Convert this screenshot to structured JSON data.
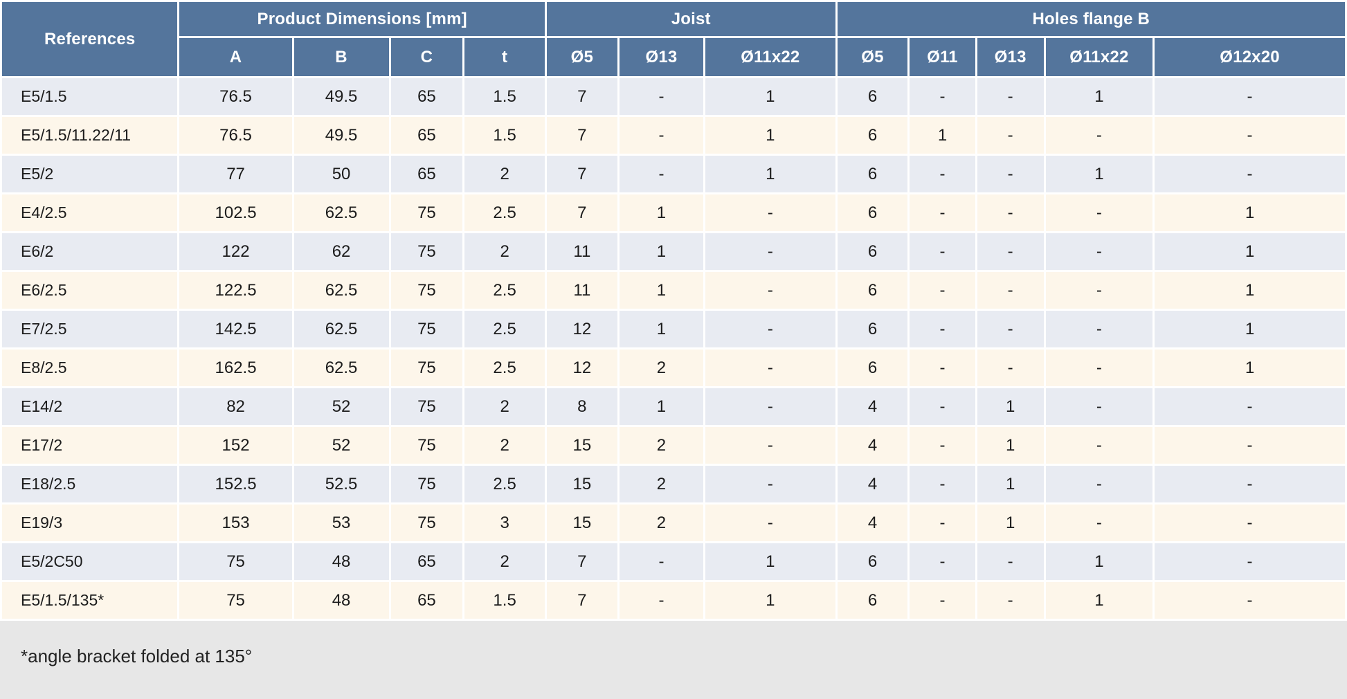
{
  "table": {
    "header": {
      "references": "References",
      "groups": [
        {
          "label": "Product Dimensions [mm]",
          "columns": [
            "A",
            "B",
            "C",
            "t"
          ]
        },
        {
          "label": "Joist",
          "columns": [
            "Ø5",
            "Ø13",
            "Ø11x22"
          ]
        },
        {
          "label": "Holes flange B",
          "columns": [
            "Ø5",
            "Ø11",
            "Ø13",
            "Ø11x22",
            "Ø12x20"
          ]
        }
      ]
    },
    "rows": [
      {
        "ref": "E5/1.5",
        "values": [
          "76.5",
          "49.5",
          "65",
          "1.5",
          "7",
          "-",
          "1",
          "6",
          "-",
          "-",
          "1",
          "-"
        ]
      },
      {
        "ref": "E5/1.5/11.22/11",
        "values": [
          "76.5",
          "49.5",
          "65",
          "1.5",
          "7",
          "-",
          "1",
          "6",
          "1",
          "-",
          "-",
          "-"
        ]
      },
      {
        "ref": "E5/2",
        "values": [
          "77",
          "50",
          "65",
          "2",
          "7",
          "-",
          "1",
          "6",
          "-",
          "-",
          "1",
          "-"
        ]
      },
      {
        "ref": "E4/2.5",
        "values": [
          "102.5",
          "62.5",
          "75",
          "2.5",
          "7",
          "1",
          "-",
          "6",
          "-",
          "-",
          "-",
          "1"
        ]
      },
      {
        "ref": "E6/2",
        "values": [
          "122",
          "62",
          "75",
          "2",
          "11",
          "1",
          "-",
          "6",
          "-",
          "-",
          "-",
          "1"
        ]
      },
      {
        "ref": "E6/2.5",
        "values": [
          "122.5",
          "62.5",
          "75",
          "2.5",
          "11",
          "1",
          "-",
          "6",
          "-",
          "-",
          "-",
          "1"
        ]
      },
      {
        "ref": "E7/2.5",
        "values": [
          "142.5",
          "62.5",
          "75",
          "2.5",
          "12",
          "1",
          "-",
          "6",
          "-",
          "-",
          "-",
          "1"
        ]
      },
      {
        "ref": "E8/2.5",
        "values": [
          "162.5",
          "62.5",
          "75",
          "2.5",
          "12",
          "2",
          "-",
          "6",
          "-",
          "-",
          "-",
          "1"
        ]
      },
      {
        "ref": "E14/2",
        "values": [
          "82",
          "52",
          "75",
          "2",
          "8",
          "1",
          "-",
          "4",
          "-",
          "1",
          "-",
          "-"
        ]
      },
      {
        "ref": "E17/2",
        "values": [
          "152",
          "52",
          "75",
          "2",
          "15",
          "2",
          "-",
          "4",
          "-",
          "1",
          "-",
          "-"
        ]
      },
      {
        "ref": "E18/2.5",
        "values": [
          "152.5",
          "52.5",
          "75",
          "2.5",
          "15",
          "2",
          "-",
          "4",
          "-",
          "1",
          "-",
          "-"
        ]
      },
      {
        "ref": "E19/3",
        "values": [
          "153",
          "53",
          "75",
          "3",
          "15",
          "2",
          "-",
          "4",
          "-",
          "1",
          "-",
          "-"
        ]
      },
      {
        "ref": "E5/2C50",
        "values": [
          "75",
          "48",
          "65",
          "2",
          "7",
          "-",
          "1",
          "6",
          "-",
          "-",
          "1",
          "-"
        ]
      },
      {
        "ref": "E5/1.5/135*",
        "values": [
          "75",
          "48",
          "65",
          "1.5",
          "7",
          "-",
          "1",
          "6",
          "-",
          "-",
          "1",
          "-"
        ]
      }
    ],
    "footnote": "*angle bracket folded at 135°"
  },
  "colors": {
    "header_bg": "#54759c",
    "row_blue_bg": "#e8ebf2",
    "row_cream_bg": "#fdf6ea",
    "footer_bg": "#e7e7e7",
    "header_text": "#ffffff",
    "cell_text": "#1c1c1c"
  }
}
